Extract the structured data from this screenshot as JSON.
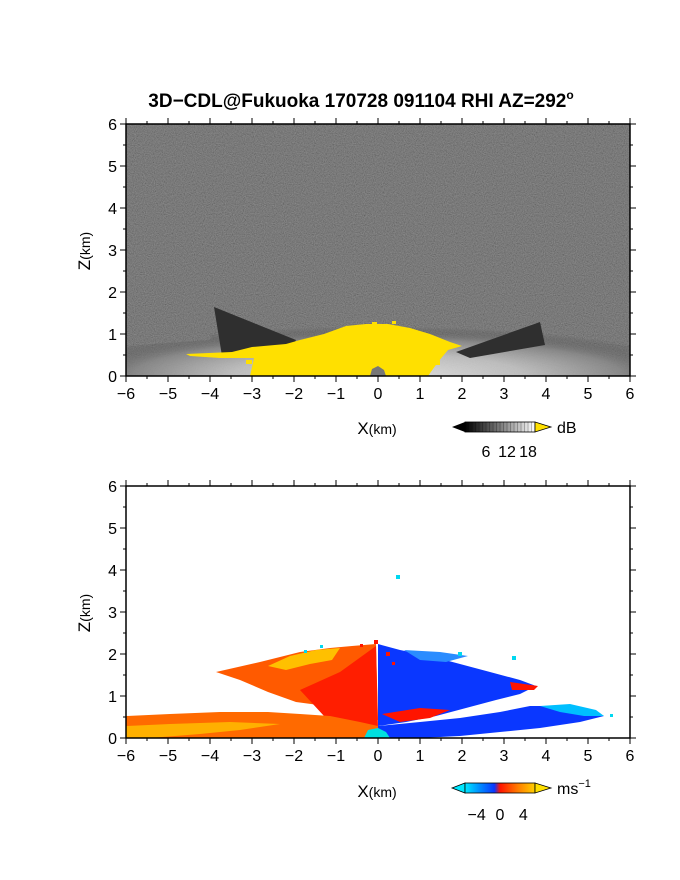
{
  "title": "3D−CDL@Fukuoka 170728 091104 RHI AZ=292",
  "title_degree": "o",
  "colors": {
    "yellow": "#ffe000",
    "dark_bg": "#2a2a2a",
    "cyan": "#00d8f0",
    "blue": "#0a37ff",
    "red": "#ff1400",
    "orange": "#ff6a00",
    "gold": "#ffc000"
  },
  "chart_data": [
    {
      "type": "heatmap",
      "panel": "top",
      "variable": "reflectivity",
      "xlabel_main": "X",
      "xlabel_unit": "(km)",
      "ylabel_main": "Z",
      "ylabel_unit": "(km)",
      "xlim": [
        -6,
        6
      ],
      "ylim": [
        0,
        6
      ],
      "xticks": [
        "−6",
        "−5",
        "−4",
        "−3",
        "−2",
        "−1",
        "0",
        "1",
        "2",
        "3",
        "4",
        "5",
        "6"
      ],
      "yticks": [
        "0",
        "1",
        "2",
        "3",
        "4",
        "5",
        "6"
      ],
      "colorbar": {
        "unit": "dB",
        "ticks": [
          6,
          12,
          18
        ],
        "range": [
          0,
          20
        ],
        "colormap": "grayscale, yellow above max"
      }
    },
    {
      "type": "heatmap",
      "panel": "bottom",
      "variable": "doppler velocity",
      "xlabel_main": "X",
      "xlabel_unit": "(km)",
      "ylabel_main": "Z",
      "ylabel_unit": "(km)",
      "xlim": [
        -6,
        6
      ],
      "ylim": [
        0,
        6
      ],
      "xticks": [
        "−6",
        "−5",
        "−4",
        "−3",
        "−2",
        "−1",
        "0",
        "1",
        "2",
        "3",
        "4",
        "5",
        "6"
      ],
      "yticks": [
        "0",
        "1",
        "2",
        "3",
        "4",
        "5",
        "6"
      ],
      "colorbar": {
        "unit_main": "ms",
        "unit_exp": "−1",
        "ticks": [
          "−4",
          "0",
          "4"
        ],
        "range": [
          -6,
          6
        ],
        "colormap": "cyan-blue-red-orange-yellow"
      }
    }
  ]
}
